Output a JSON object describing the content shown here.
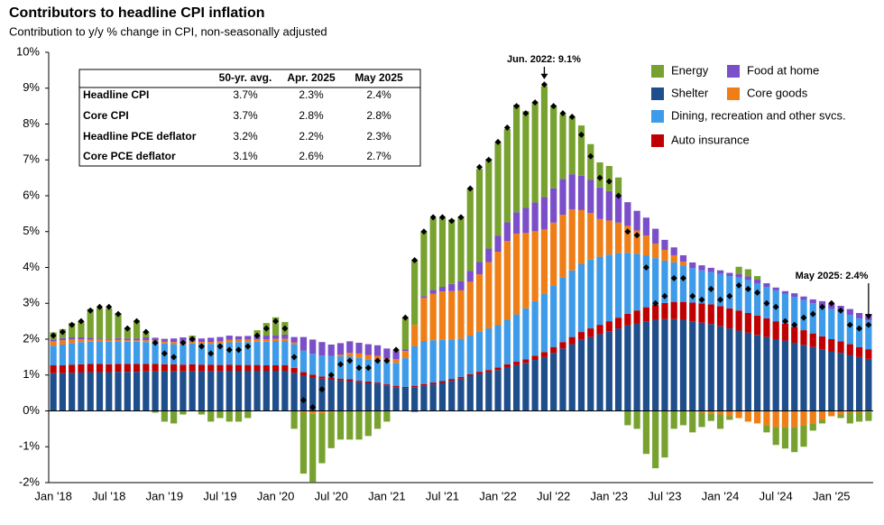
{
  "chart_data": {
    "type": "bar",
    "stacked": true,
    "title": "Contributors to headline CPI inflation",
    "subtitle": "Contribution to y/y % change in CPI, non-seasonally adjusted",
    "categories": [
      "Jan '18",
      null,
      null,
      null,
      null,
      null,
      "Jul '18",
      null,
      null,
      null,
      null,
      null,
      "Jan '19",
      null,
      null,
      null,
      null,
      null,
      "Jul '19",
      null,
      null,
      null,
      null,
      null,
      "Jan '20",
      null,
      null,
      null,
      null,
      null,
      "Jul '20",
      null,
      null,
      null,
      null,
      null,
      "Jan '21",
      null,
      null,
      null,
      null,
      null,
      "Jul '21",
      null,
      null,
      null,
      null,
      null,
      "Jan '22",
      null,
      null,
      null,
      null,
      null,
      "Jul '22",
      null,
      null,
      null,
      null,
      null,
      "Jan '23",
      null,
      null,
      null,
      null,
      null,
      "Jul '23",
      null,
      null,
      null,
      null,
      null,
      "Jan '24",
      null,
      null,
      null,
      null,
      null,
      "Jul '24",
      null,
      null,
      null,
      null,
      null,
      "Jan '25",
      null,
      null,
      null,
      null
    ],
    "ylim": [
      -2,
      10
    ],
    "yticks": [
      {
        "value": -2,
        "label": "-2%"
      },
      {
        "value": -1,
        "label": "-1%"
      },
      {
        "value": 0,
        "label": "0%"
      },
      {
        "value": 1,
        "label": "1%"
      },
      {
        "value": 2,
        "label": "2%"
      },
      {
        "value": 3,
        "label": "3%"
      },
      {
        "value": 4,
        "label": "4%"
      },
      {
        "value": 5,
        "label": "5%"
      },
      {
        "value": 6,
        "label": "6%"
      },
      {
        "value": 7,
        "label": "7%"
      },
      {
        "value": 8,
        "label": "8%"
      },
      {
        "value": 9,
        "label": "9%"
      },
      {
        "value": 10,
        "label": "10%"
      }
    ],
    "series": [
      {
        "name": "Energy",
        "color": "#78a22f",
        "values": [
          0.2,
          0.25,
          0.4,
          0.45,
          0.8,
          0.85,
          0.85,
          0.7,
          0.3,
          0.5,
          0.15,
          -0.05,
          -0.3,
          -0.35,
          -0.1,
          0.05,
          -0.1,
          -0.3,
          -0.2,
          -0.3,
          -0.3,
          -0.2,
          0.15,
          0.35,
          0.5,
          0.35,
          -0.5,
          -1.7,
          -1.9,
          -1.4,
          -1.0,
          -0.8,
          -0.8,
          -0.8,
          -0.7,
          -0.5,
          -0.3,
          0.05,
          0.9,
          1.8,
          1.8,
          2.0,
          1.95,
          1.8,
          1.8,
          2.3,
          2.6,
          2.5,
          2.6,
          2.6,
          3.0,
          2.7,
          2.8,
          3.1,
          2.3,
          1.8,
          1.6,
          1.4,
          1.0,
          0.7,
          0.7,
          0.5,
          -0.4,
          -0.5,
          -1.2,
          -1.6,
          -1.3,
          -0.5,
          -0.4,
          -0.6,
          -0.4,
          -0.2,
          -0.4,
          -0.1,
          0.2,
          0.2,
          0.1,
          -0.2,
          -0.5,
          -0.6,
          -0.7,
          -0.6,
          -0.2,
          -0.1,
          0.0,
          -0.1,
          -0.3,
          -0.25,
          -0.25
        ]
      },
      {
        "name": "Food at home",
        "color": "#7b4fc9",
        "values": [
          0.05,
          0.06,
          0.06,
          0.05,
          0.05,
          0.03,
          0.03,
          0.05,
          0.05,
          0.05,
          0.08,
          0.08,
          0.08,
          0.1,
          0.15,
          0.12,
          0.1,
          0.12,
          0.12,
          0.12,
          0.09,
          0.1,
          0.1,
          0.1,
          0.1,
          0.12,
          0.15,
          0.38,
          0.4,
          0.38,
          0.32,
          0.32,
          0.32,
          0.3,
          0.3,
          0.3,
          0.28,
          0.22,
          0.04,
          -0.03,
          0.05,
          0.1,
          0.13,
          0.2,
          0.26,
          0.3,
          0.34,
          0.38,
          0.45,
          0.52,
          0.6,
          0.7,
          0.8,
          0.9,
          0.96,
          1.0,
          0.98,
          0.96,
          0.92,
          0.88,
          0.82,
          0.76,
          0.66,
          0.55,
          0.5,
          0.42,
          0.28,
          0.22,
          0.18,
          0.16,
          0.14,
          0.12,
          0.1,
          0.09,
          0.1,
          0.1,
          0.1,
          0.1,
          0.08,
          0.07,
          0.1,
          0.1,
          0.11,
          0.14,
          0.15,
          0.15,
          0.16,
          0.15,
          0.16
        ]
      },
      {
        "name": "Shelter",
        "color": "#1f4e8c",
        "values": [
          1.05,
          1.05,
          1.06,
          1.07,
          1.08,
          1.08,
          1.08,
          1.09,
          1.09,
          1.09,
          1.1,
          1.1,
          1.1,
          1.1,
          1.1,
          1.11,
          1.11,
          1.11,
          1.11,
          1.12,
          1.12,
          1.12,
          1.12,
          1.12,
          1.12,
          1.12,
          1.06,
          0.98,
          0.93,
          0.9,
          0.88,
          0.85,
          0.83,
          0.8,
          0.78,
          0.75,
          0.7,
          0.66,
          0.64,
          0.66,
          0.7,
          0.74,
          0.78,
          0.84,
          0.9,
          0.97,
          1.03,
          1.08,
          1.14,
          1.22,
          1.28,
          1.34,
          1.42,
          1.5,
          1.62,
          1.74,
          1.86,
          1.98,
          2.06,
          2.14,
          2.22,
          2.3,
          2.38,
          2.44,
          2.5,
          2.54,
          2.56,
          2.56,
          2.54,
          2.5,
          2.46,
          2.42,
          2.36,
          2.3,
          2.24,
          2.18,
          2.12,
          2.06,
          2.0,
          1.96,
          1.9,
          1.84,
          1.78,
          1.72,
          1.66,
          1.62,
          1.56,
          1.5,
          1.45
        ]
      },
      {
        "name": "Core goods",
        "color": "#f07e16",
        "values": [
          0.12,
          0.12,
          0.1,
          0.08,
          0.06,
          0.05,
          0.05,
          0.04,
          0.04,
          0.04,
          0.05,
          0.05,
          0.05,
          0.06,
          0.05,
          0.05,
          0.05,
          0.05,
          0.06,
          0.07,
          0.07,
          0.07,
          0.07,
          0.07,
          0.06,
          0.06,
          0.05,
          -0.05,
          -0.08,
          -0.06,
          -0.04,
          0.05,
          0.1,
          0.12,
          0.12,
          0.12,
          0.1,
          0.1,
          0.2,
          0.6,
          1.2,
          1.3,
          1.35,
          1.35,
          1.35,
          1.5,
          1.6,
          1.85,
          2.05,
          2.2,
          2.25,
          2.1,
          1.95,
          1.8,
          1.75,
          1.75,
          1.7,
          1.5,
          1.3,
          1.05,
          0.95,
          0.85,
          0.75,
          0.65,
          0.55,
          0.4,
          0.3,
          0.2,
          0.1,
          0.0,
          -0.05,
          -0.08,
          -0.1,
          -0.15,
          -0.2,
          -0.3,
          -0.35,
          -0.4,
          -0.45,
          -0.45,
          -0.45,
          -0.4,
          -0.35,
          -0.25,
          -0.15,
          -0.1,
          -0.05,
          -0.05,
          -0.03
        ]
      },
      {
        "name": "Dining, recreation and other svcs.",
        "color": "#3d9be9",
        "values": [
          0.55,
          0.58,
          0.6,
          0.62,
          0.62,
          0.63,
          0.63,
          0.63,
          0.62,
          0.62,
          0.61,
          0.6,
          0.58,
          0.56,
          0.56,
          0.58,
          0.58,
          0.58,
          0.6,
          0.62,
          0.64,
          0.64,
          0.65,
          0.66,
          0.68,
          0.68,
          0.66,
          0.6,
          0.58,
          0.58,
          0.6,
          0.62,
          0.64,
          0.64,
          0.62,
          0.62,
          0.62,
          0.64,
          0.8,
          1.1,
          1.2,
          1.18,
          1.15,
          1.1,
          1.06,
          1.08,
          1.12,
          1.16,
          1.18,
          1.24,
          1.32,
          1.42,
          1.52,
          1.62,
          1.72,
          1.8,
          1.86,
          1.9,
          1.92,
          1.9,
          1.86,
          1.8,
          1.7,
          1.58,
          1.45,
          1.3,
          1.18,
          1.1,
          1.02,
          0.96,
          0.92,
          0.9,
          0.9,
          0.9,
          0.92,
          0.92,
          0.9,
          0.88,
          0.86,
          0.84,
          0.84,
          0.84,
          0.84,
          0.84,
          0.84,
          0.84,
          0.82,
          0.8,
          0.8
        ]
      },
      {
        "name": "Auto insurance",
        "color": "#c00000",
        "values": [
          0.22,
          0.22,
          0.23,
          0.23,
          0.23,
          0.23,
          0.22,
          0.22,
          0.22,
          0.22,
          0.21,
          0.21,
          0.2,
          0.2,
          0.19,
          0.19,
          0.18,
          0.18,
          0.17,
          0.17,
          0.16,
          0.16,
          0.16,
          0.15,
          0.15,
          0.15,
          0.14,
          0.1,
          0.08,
          0.06,
          0.05,
          0.05,
          0.05,
          0.04,
          0.04,
          0.04,
          0.04,
          0.04,
          0.03,
          0.04,
          0.05,
          0.05,
          0.05,
          0.05,
          0.05,
          0.05,
          0.06,
          0.06,
          0.07,
          0.08,
          0.09,
          0.1,
          0.12,
          0.14,
          0.16,
          0.18,
          0.2,
          0.22,
          0.24,
          0.26,
          0.28,
          0.3,
          0.33,
          0.36,
          0.39,
          0.42,
          0.45,
          0.48,
          0.5,
          0.52,
          0.54,
          0.55,
          0.56,
          0.56,
          0.56,
          0.55,
          0.54,
          0.52,
          0.5,
          0.47,
          0.44,
          0.41,
          0.38,
          0.36,
          0.34,
          0.32,
          0.3,
          0.28,
          0.27
        ]
      }
    ],
    "headline": {
      "color": "#000000",
      "values": [
        2.1,
        2.2,
        2.4,
        2.5,
        2.8,
        2.9,
        2.9,
        2.7,
        2.3,
        2.5,
        2.2,
        1.9,
        1.6,
        1.5,
        1.9,
        2.0,
        1.8,
        1.6,
        1.8,
        1.7,
        1.7,
        1.8,
        2.1,
        2.3,
        2.5,
        2.3,
        1.5,
        0.3,
        0.1,
        0.6,
        1.0,
        1.3,
        1.4,
        1.2,
        1.2,
        1.4,
        1.4,
        1.7,
        2.6,
        4.2,
        5.0,
        5.4,
        5.4,
        5.3,
        5.4,
        6.2,
        6.8,
        7.0,
        7.5,
        7.9,
        8.5,
        8.3,
        8.6,
        9.1,
        8.5,
        8.3,
        8.2,
        7.7,
        7.1,
        6.5,
        6.4,
        6.0,
        5.0,
        4.9,
        4.0,
        3.0,
        3.2,
        3.7,
        3.7,
        3.2,
        3.1,
        3.4,
        3.1,
        3.2,
        3.5,
        3.4,
        3.3,
        3.0,
        2.9,
        2.5,
        2.4,
        2.6,
        2.7,
        2.9,
        3.0,
        2.8,
        2.4,
        2.3,
        2.4
      ]
    },
    "annotations": [
      "Jun. 2022: 9.1%",
      "May 2025: 2.4%"
    ],
    "table": {
      "columns": [
        "50-yr. avg.",
        "Apr. 2025",
        "May 2025"
      ],
      "rows": [
        [
          "Headline CPI",
          "3.7%",
          "2.3%",
          "2.4%"
        ],
        [
          "Core CPI",
          "3.7%",
          "2.8%",
          "2.8%"
        ],
        [
          "Headline PCE deflator",
          "3.2%",
          "2.2%",
          "2.3%"
        ],
        [
          "Core PCE deflator",
          "3.1%",
          "2.6%",
          "2.7%"
        ]
      ]
    }
  }
}
